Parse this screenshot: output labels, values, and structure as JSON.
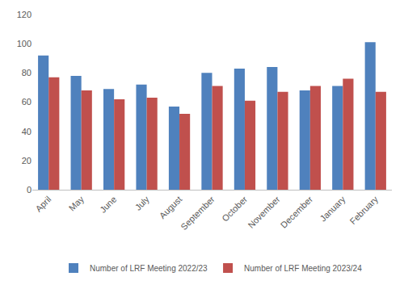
{
  "chart_data": {
    "type": "bar",
    "categories": [
      "April",
      "May",
      "June",
      "July",
      "August",
      "September",
      "October",
      "November",
      "December",
      "January",
      "February"
    ],
    "series": [
      {
        "name": "Number of LRF Meeting 2022/23",
        "color": "#4f81bd",
        "values": [
          92,
          78,
          69,
          72,
          57,
          80,
          83,
          84,
          68,
          71,
          101
        ]
      },
      {
        "name": "Number of LRF Meeting 2023/24",
        "color": "#c0504d",
        "values": [
          77,
          68,
          62,
          63,
          52,
          71,
          61,
          67,
          71,
          76,
          67
        ]
      }
    ],
    "ylim": [
      0,
      120
    ],
    "yticks": [
      0,
      20,
      40,
      60,
      80,
      100,
      120
    ],
    "grid": false,
    "legend": "bottom"
  }
}
